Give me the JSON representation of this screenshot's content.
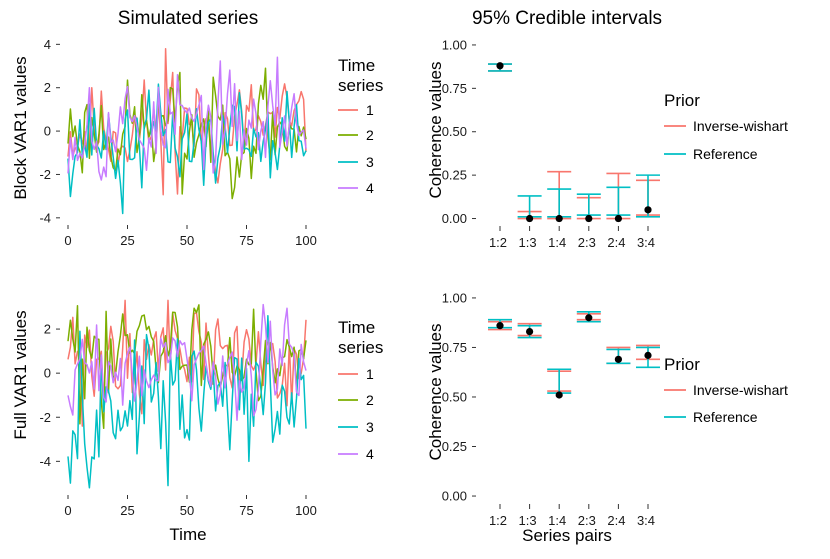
{
  "colors": {
    "series_1": "#F8766D",
    "series_2": "#7CAE00",
    "series_3": "#00BFC4",
    "series_4": "#C77CFF",
    "inverse_wishart": "#F8766D",
    "reference": "#00BFC4",
    "point": "#000000",
    "tick": "#333333"
  },
  "chart_data": [
    {
      "id": "block-var1",
      "type": "line",
      "title": "Simulated series",
      "xlabel": "",
      "ylabel": "Block VAR1 values",
      "xlim": [
        0,
        100
      ],
      "ylim": [
        -4.1,
        4.2
      ],
      "x_ticks": [
        0,
        25,
        50,
        75,
        100
      ],
      "y_ticks": [
        -4,
        -2,
        0,
        2,
        4
      ],
      "legend": {
        "title_line1": "Time",
        "title_line2": "series",
        "labels": [
          "1",
          "2",
          "3",
          "4"
        ],
        "position": "right"
      },
      "series": [
        {
          "name": "1",
          "params": {
            "mean": 0.15,
            "amp": 1.05,
            "seed": 11
          },
          "peaks": [
            [
              41,
              3.8
            ],
            [
              46,
              -2.9
            ],
            [
              44,
              2.7
            ]
          ]
        },
        {
          "name": "2",
          "params": {
            "mean": 0.1,
            "amp": 1.05,
            "seed": 23
          },
          "peaks": [
            [
              47,
              2.7
            ],
            [
              83,
              2.9
            ],
            [
              48,
              -2.9
            ]
          ]
        },
        {
          "name": "3",
          "params": {
            "mean": -0.3,
            "amp": 1.05,
            "seed": 37
          },
          "peaks": [
            [
              23,
              -3.8
            ],
            [
              22,
              -2.4
            ],
            [
              57,
              -2.5
            ]
          ]
        },
        {
          "name": "4",
          "params": {
            "mean": 0.25,
            "amp": 1.05,
            "seed": 53
          },
          "peaks": [
            [
              88,
              3.4
            ],
            [
              46,
              2.6
            ],
            [
              9,
              2.0
            ]
          ]
        }
      ]
    },
    {
      "id": "coh-block",
      "type": "errorbar",
      "title": "95% Credible intervals",
      "xlabel": "",
      "ylabel": "Coherence values",
      "ylim": [
        -0.02,
        1.04
      ],
      "y_ticks": [
        0.0,
        0.25,
        0.5,
        0.75,
        1.0
      ],
      "y_tick_labels": [
        "0.00",
        "0.25",
        "0.50",
        "0.75",
        "1.00"
      ],
      "categories": [
        "1:2",
        "1:3",
        "1:4",
        "2:3",
        "2:4",
        "3:4"
      ],
      "point_estimates": [
        0.88,
        0.0,
        0.0,
        0.0,
        0.0,
        0.05
      ],
      "series": [
        {
          "name": "Inverse-wishart",
          "lower": [
            0.85,
            0.0,
            0.0,
            0.0,
            0.0,
            0.02
          ],
          "upper": [
            0.89,
            0.04,
            0.27,
            0.12,
            0.26,
            0.22
          ]
        },
        {
          "name": "Reference",
          "lower": [
            0.85,
            0.01,
            0.01,
            0.02,
            0.02,
            0.01
          ],
          "upper": [
            0.89,
            0.13,
            0.17,
            0.14,
            0.18,
            0.25
          ]
        }
      ],
      "legend": {
        "title": "Prior",
        "labels": [
          "Inverse-wishart",
          "Reference"
        ],
        "position": "right"
      }
    },
    {
      "id": "full-var1",
      "type": "line",
      "title": "",
      "xlabel": "Time",
      "ylabel": "Full VAR1 values",
      "xlim": [
        0,
        100
      ],
      "ylim": [
        -5.3,
        3.5
      ],
      "x_ticks": [
        0,
        25,
        50,
        75,
        100
      ],
      "y_ticks": [
        -4,
        -2,
        0,
        2
      ],
      "legend": {
        "title_line1": "Time",
        "title_line2": "series",
        "labels": [
          "1",
          "2",
          "3",
          "4"
        ],
        "position": "right"
      },
      "series": [
        {
          "name": "1",
          "params": {
            "mean": 0.8,
            "amp": 1.05,
            "seed": 71
          },
          "peaks": [
            [
              24,
              3.3
            ],
            [
              42,
              3.3
            ],
            [
              6,
              -2.4
            ]
          ]
        },
        {
          "name": "2",
          "params": {
            "mean": 1.0,
            "amp": 1.0,
            "seed": 83
          },
          "peaks": [
            [
              16,
              2.8
            ],
            [
              78,
              2.9
            ],
            [
              5,
              -2.3
            ]
          ]
        },
        {
          "name": "3",
          "params": {
            "mean": -1.4,
            "amp": 1.3,
            "seed": 97
          },
          "peaks": [
            [
              42,
              -5.1
            ],
            [
              13,
              -3.8
            ],
            [
              5,
              1.9
            ]
          ]
        },
        {
          "name": "4",
          "params": {
            "mean": 0.2,
            "amp": 1.0,
            "seed": 109
          },
          "peaks": [
            [
              2,
              -1.9
            ],
            [
              98,
              1.3
            ],
            [
              44,
              1.6
            ]
          ]
        }
      ]
    },
    {
      "id": "coh-full",
      "type": "errorbar",
      "title": "",
      "xlabel": "Series pairs",
      "ylabel": "Coherence values",
      "ylim": [
        -0.02,
        1.04
      ],
      "y_ticks": [
        0.0,
        0.25,
        0.5,
        0.75,
        1.0
      ],
      "y_tick_labels": [
        "0.00",
        "0.25",
        "0.50",
        "0.75",
        "1.00"
      ],
      "categories": [
        "1:2",
        "1:3",
        "1:4",
        "2:3",
        "2:4",
        "3:4"
      ],
      "point_estimates": [
        0.86,
        0.83,
        0.51,
        0.9,
        0.69,
        0.71
      ],
      "series": [
        {
          "name": "Inverse-wishart",
          "lower": [
            0.84,
            0.81,
            0.53,
            0.89,
            0.67,
            0.69
          ],
          "upper": [
            0.88,
            0.87,
            0.63,
            0.92,
            0.75,
            0.76
          ]
        },
        {
          "name": "Reference",
          "lower": [
            0.85,
            0.8,
            0.52,
            0.88,
            0.67,
            0.65
          ],
          "upper": [
            0.89,
            0.86,
            0.64,
            0.93,
            0.74,
            0.75
          ]
        }
      ],
      "legend": {
        "title": "Prior",
        "labels": [
          "Inverse-wishart",
          "Reference"
        ],
        "position": "right"
      }
    }
  ]
}
